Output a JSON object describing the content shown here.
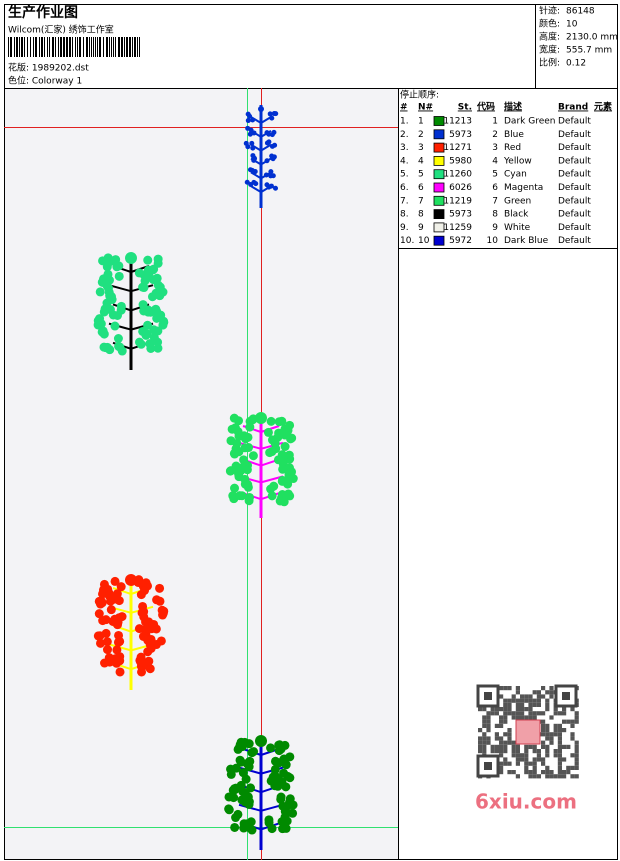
{
  "header": {
    "title": "生产作业图",
    "company": "Wilcom(汇家) 绣饰工作室",
    "design": "花版: 1989202.dst",
    "colorway": "色位: Colorway 1"
  },
  "stats": [
    {
      "label": "针迹:",
      "value": "86148"
    },
    {
      "label": "颜色:",
      "value": "10"
    },
    {
      "label": "高度:",
      "value": "2130.0 mm"
    },
    {
      "label": "宽度:",
      "value": "555.7 mm"
    },
    {
      "label": "比例:",
      "value": "0.12"
    }
  ],
  "table": {
    "title": "停止顺序:",
    "headers": [
      "#",
      "N#",
      "St.",
      "代码",
      "描述",
      "Brand",
      "元素"
    ],
    "rows": [
      {
        "index": "1.",
        "n": "1",
        "color": "#008a00",
        "st": "11213",
        "code": "1",
        "desc": "Dark Green",
        "brand": "Default"
      },
      {
        "index": "2.",
        "n": "2",
        "color": "#0030d0",
        "st": "5973",
        "code": "2",
        "desc": "Blue",
        "brand": "Default"
      },
      {
        "index": "3.",
        "n": "3",
        "color": "#ff2000",
        "st": "11271",
        "code": "3",
        "desc": "Red",
        "brand": "Default"
      },
      {
        "index": "4.",
        "n": "4",
        "color": "#ffff00",
        "st": "5980",
        "code": "4",
        "desc": "Yellow",
        "brand": "Default"
      },
      {
        "index": "5.",
        "n": "5",
        "color": "#20e080",
        "st": "11260",
        "code": "5",
        "desc": "Cyan",
        "brand": "Default"
      },
      {
        "index": "6.",
        "n": "6",
        "color": "#ff00ff",
        "st": "6026",
        "code": "6",
        "desc": "Magenta",
        "brand": "Default"
      },
      {
        "index": "7.",
        "n": "7",
        "color": "#20e060",
        "st": "11219",
        "code": "7",
        "desc": "Green",
        "brand": "Default"
      },
      {
        "index": "8.",
        "n": "8",
        "color": "#000000",
        "st": "5973",
        "code": "8",
        "desc": "Black",
        "brand": "Default"
      },
      {
        "index": "9.",
        "n": "9",
        "color": "#f0f0e8",
        "st": "11259",
        "code": "9",
        "desc": "White",
        "brand": "Default"
      },
      {
        "index": "10.",
        "n": "10",
        "color": "#0000d0",
        "st": "5972",
        "code": "10",
        "desc": "Dark Blue",
        "brand": "Default"
      }
    ]
  },
  "watermark": "6xiu.com"
}
